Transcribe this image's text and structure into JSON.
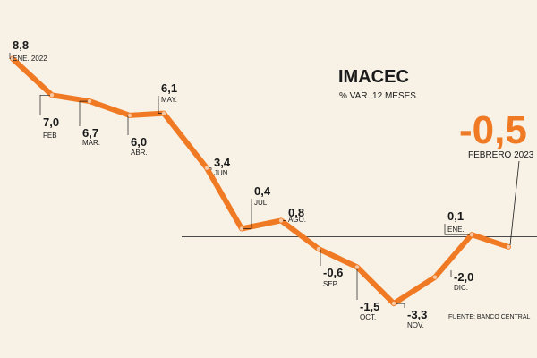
{
  "chart_data": {
    "type": "line",
    "title": "IMACEC",
    "subtitle": "% VAR. 12 MESES",
    "highlight": {
      "value": "-0,5",
      "label": "FEBRERO 2023"
    },
    "source": "FUENTE: BANCO CENTRAL",
    "line_color": "#f07a24",
    "point_color": "#f6c9a6",
    "zero_line": true,
    "points": [
      {
        "label": "ENE. 2022",
        "value": 8.8,
        "display": "8,8"
      },
      {
        "label": "FEB",
        "value": 7.0,
        "display": "7,0"
      },
      {
        "label": "MAR.",
        "value": 6.7,
        "display": "6,7"
      },
      {
        "label": "ABR.",
        "value": 6.0,
        "display": "6,0"
      },
      {
        "label": "MAY.",
        "value": 6.1,
        "display": "6,1"
      },
      {
        "label": "JUN.",
        "value": 3.4,
        "display": "3,4"
      },
      {
        "label": "JUL.",
        "value": 0.4,
        "display": "0,4"
      },
      {
        "label": "AGO.",
        "value": 0.8,
        "display": "0,8"
      },
      {
        "label": "SEP.",
        "value": -0.6,
        "display": "-0,6"
      },
      {
        "label": "OCT.",
        "value": -1.5,
        "display": "-1,5"
      },
      {
        "label": "NOV.",
        "value": -3.3,
        "display": "-3,3"
      },
      {
        "label": "DIC.",
        "value": -2.0,
        "display": "-2,0"
      },
      {
        "label": "ENE.",
        "value": 0.1,
        "display": "0,1"
      },
      {
        "label": "",
        "value": -0.5,
        "display": ""
      }
    ]
  }
}
